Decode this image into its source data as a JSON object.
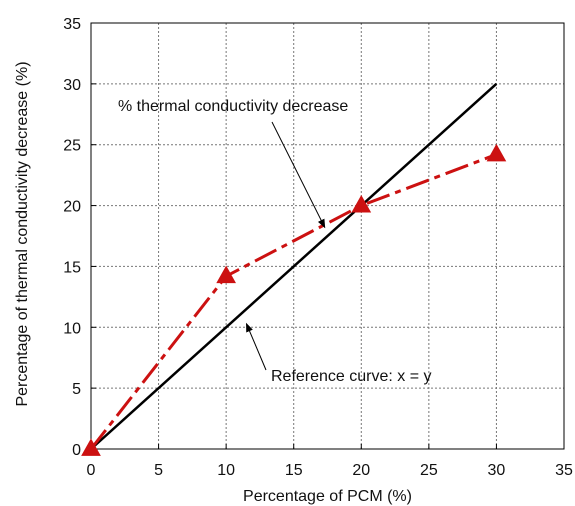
{
  "chart_data": {
    "type": "line",
    "title": "",
    "xlabel": "Percentage of PCM (%)",
    "ylabel": "Percentage of thermal conductivity decrease (%)",
    "xlim": [
      0,
      35
    ],
    "ylim": [
      0,
      35
    ],
    "xticks": [
      0,
      5,
      10,
      15,
      20,
      25,
      30,
      35
    ],
    "yticks": [
      0,
      5,
      10,
      15,
      20,
      25,
      30,
      35
    ],
    "grid": true,
    "series": [
      {
        "name": "Reference curve: x = y",
        "style": "solid",
        "color": "#000000",
        "x": [
          0,
          30
        ],
        "y": [
          0,
          30
        ]
      },
      {
        "name": "% thermal conductivity decrease",
        "style": "dash-dot",
        "marker": "triangle",
        "color": "#cc1111",
        "x": [
          0,
          10,
          20,
          30
        ],
        "y": [
          0,
          14.2,
          20,
          24.2
        ]
      }
    ],
    "annotations": [
      {
        "text": "% thermal conductivity decrease",
        "points_to": [
          17.3,
          18.2
        ]
      },
      {
        "text": "Reference curve: x = y",
        "points_to": [
          11.5,
          10.3
        ]
      }
    ]
  }
}
